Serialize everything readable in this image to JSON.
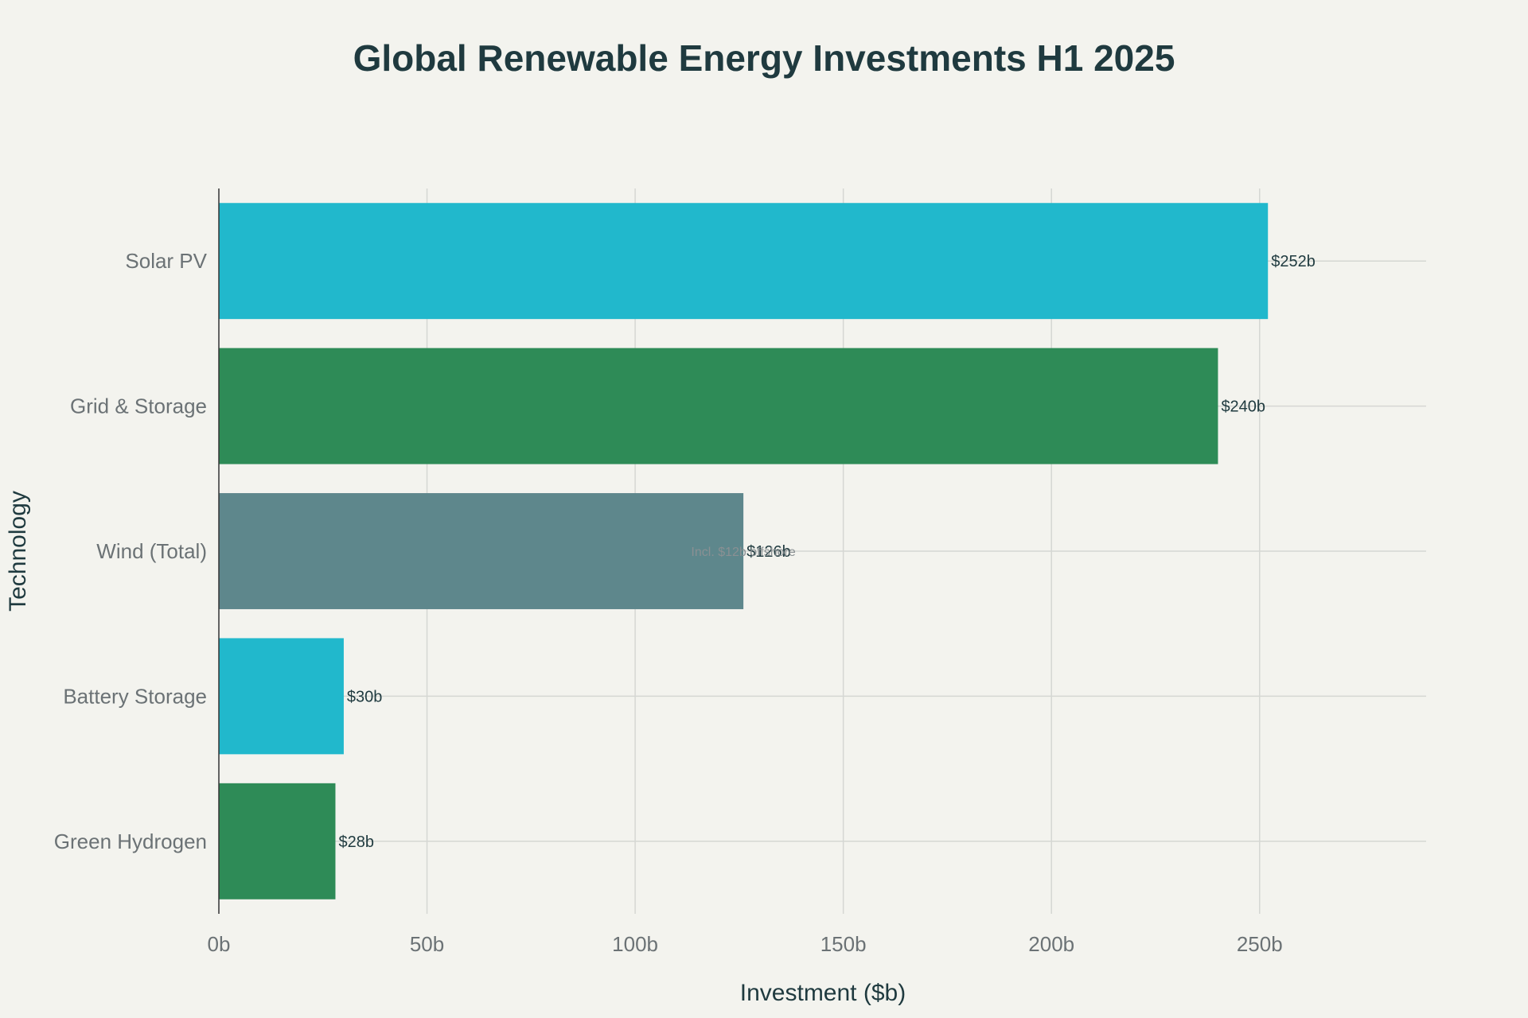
{
  "chart_data": {
    "type": "bar",
    "orientation": "horizontal",
    "title": "Global Renewable Energy Investments H1 2025",
    "xlabel": "Investment ($b)",
    "ylabel": "Technology",
    "xlim": [
      0,
      290
    ],
    "x_ticks": [
      0,
      50,
      100,
      150,
      200,
      250
    ],
    "x_tick_labels": [
      "0b",
      "50b",
      "100b",
      "150b",
      "200b",
      "250b"
    ],
    "grid": true,
    "legend": "none",
    "categories": [
      "Solar PV",
      "Grid & Storage",
      "Wind (Total)",
      "Battery Storage",
      "Green Hydrogen"
    ],
    "values": [
      252,
      240,
      126,
      30,
      28
    ],
    "data_labels": [
      "$252b",
      "$240b",
      "$126b",
      "$30b",
      "$28b"
    ],
    "colors": [
      "#21b8cc",
      "#2e8b57",
      "#5e878c",
      "#21b8cc",
      "#2e8b57"
    ],
    "annotations": [
      {
        "category": "Wind (Total)",
        "value": 126,
        "text": "Incl. $12b offshore"
      }
    ]
  }
}
